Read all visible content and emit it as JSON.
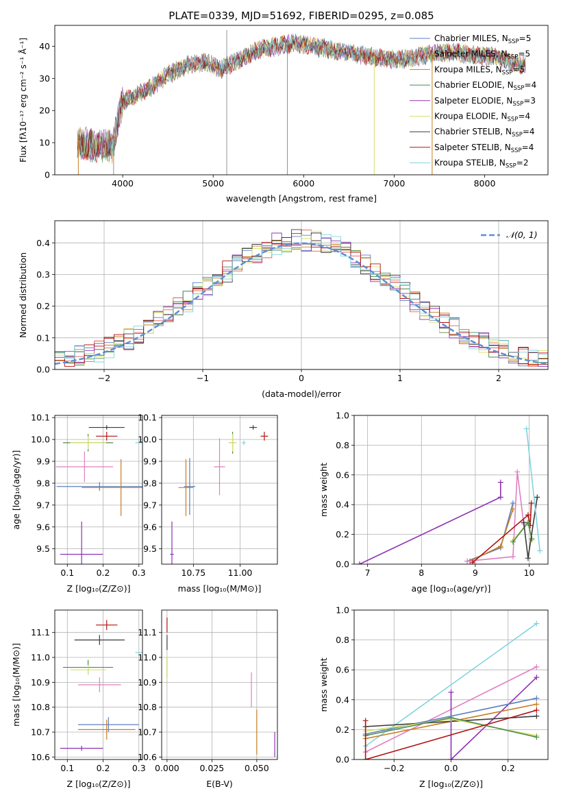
{
  "chart_data": [
    {
      "type": "line",
      "title": "PLATE=0339, MJD=51692, FIBERID=0295, z=0.085",
      "xlabel": "wavelength [Angstrom, rest frame]",
      "ylabel": "Flux [fλ10⁻¹⁷ erg cm⁻² s⁻¹ Å⁻¹]",
      "xlim": [
        3250,
        8700
      ],
      "ylim": [
        0,
        46.5
      ],
      "xticks": [
        4000,
        5000,
        6000,
        7000,
        8000
      ],
      "yticks": [
        0,
        10,
        20,
        30,
        40
      ],
      "legend_position": "top-right",
      "spectrum_anchor_points": {
        "x": [
          3500,
          3700,
          3900,
          3920,
          4000,
          4100,
          4300,
          4500,
          4700,
          4900,
          5100,
          5300,
          5500,
          5700,
          5900,
          6100,
          6300,
          6500,
          6700,
          6900,
          7100,
          7300,
          7500,
          7700,
          7900,
          8100,
          8300,
          8450
        ],
        "y": [
          10,
          9,
          9,
          14,
          23,
          24,
          27,
          31,
          34,
          35,
          33,
          36,
          39,
          40,
          41,
          40,
          39,
          38,
          37,
          36,
          36,
          37,
          38,
          38,
          37,
          37,
          35,
          34
        ]
      },
      "series": [
        {
          "name": "Chabrier MILES, N_SSP=5",
          "color": "#5b7fbf"
        },
        {
          "name": "Salpeter MILES, N_SSP=5",
          "color": "#e05c5c"
        },
        {
          "name": "Kroupa MILES, N_SSP=5",
          "color": "#c77d21"
        },
        {
          "name": "Chabrier ELODIE, N_SSP=4",
          "color": "#4c8a4c"
        },
        {
          "name": "Salpeter ELODIE, N_SSP=3",
          "color": "#8e30b3"
        },
        {
          "name": "Kroupa ELODIE, N_SSP=4",
          "color": "#d9e06a"
        },
        {
          "name": "Chabrier STELIB, N_SSP=4",
          "color": "#3a3a3a"
        },
        {
          "name": "Salpeter STELIB, N_SSP=4",
          "color": "#b01010"
        },
        {
          "name": "Kroupa STELIB, N_SSP=2",
          "color": "#7fd3e0"
        }
      ],
      "legend_labels": [
        {
          "pre": "Chabrier MILES, N",
          "sub": "SSP",
          "post": "=5"
        },
        {
          "pre": "Salpeter MILES, N",
          "sub": "SSP",
          "post": "=5"
        },
        {
          "pre": "Kroupa MILES, N",
          "sub": "SSP",
          "post": "=5"
        },
        {
          "pre": "Chabrier ELODIE, N",
          "sub": "SSP",
          "post": "=4"
        },
        {
          "pre": "Salpeter ELODIE, N",
          "sub": "SSP",
          "post": "=3"
        },
        {
          "pre": "Kroupa ELODIE, N",
          "sub": "SSP",
          "post": "=4"
        },
        {
          "pre": "Chabrier STELIB, N",
          "sub": "SSP",
          "post": "=4"
        },
        {
          "pre": "Salpeter STELIB, N",
          "sub": "SSP",
          "post": "=4"
        },
        {
          "pre": "Kroupa STELIB, N",
          "sub": "SSP",
          "post": "=2"
        }
      ]
    },
    {
      "type": "line",
      "xlabel": "(data-model)/error",
      "ylabel": "Normed distribution",
      "xlim": [
        -2.5,
        2.5
      ],
      "ylim": [
        0,
        0.47
      ],
      "xticks": [
        -2,
        -1,
        0,
        1,
        2
      ],
      "yticks": [
        0.0,
        0.1,
        0.2,
        0.3,
        0.4
      ],
      "grid": true,
      "legend_position": "top-right",
      "reference_curve": {
        "name": "𝒩(0, 1)",
        "mean": 0,
        "sigma": 1,
        "color": "#5b8fd6",
        "style": "dashed"
      }
    },
    {
      "type": "scatter",
      "xlabel": "Z [log₁₀(Z/Z⊙)]",
      "ylabel": "age  [log₁₀(age/yr)]",
      "xlim": [
        0.065,
        0.31
      ],
      "ylim": [
        9.43,
        10.11
      ],
      "xticks": [
        0.1,
        0.2,
        0.3
      ],
      "yticks": [
        9.5,
        9.6,
        9.7,
        9.8,
        9.9,
        10.0,
        10.1
      ],
      "grid": true,
      "points": [
        {
          "x": 0.21,
          "xerr": 0.05,
          "y": 10.055,
          "yerr": 0.01,
          "color": "#3a3a3a"
        },
        {
          "x": 0.21,
          "xerr": 0.03,
          "y": 10.015,
          "yerr": 0.02,
          "color": "#b01010"
        },
        {
          "x": 0.158,
          "xerr": 0.07,
          "y": 9.985,
          "yerr": 0.04,
          "color": "#4c8a4c"
        },
        {
          "x": 0.158,
          "xerr": 0.05,
          "y": 9.985,
          "yerr": 0.03,
          "color": "#d9e06a"
        },
        {
          "x": 0.33,
          "xerr": 0.04,
          "y": 9.985,
          "yerr": 0.01,
          "color": "#7fd3e0"
        },
        {
          "x": 0.148,
          "xerr": 0.08,
          "y": 9.875,
          "yerr": 0.07,
          "color": "#e07fc2"
        },
        {
          "x": 0.19,
          "xerr": 0.12,
          "y": 9.785,
          "yerr": 0.02,
          "color": "#5b7fbf"
        },
        {
          "x": 0.25,
          "xerr": 0.11,
          "y": 9.78,
          "yerr": 0.13,
          "color": "#c77d21"
        },
        {
          "x": 0.14,
          "xerr": 0.06,
          "y": 9.475,
          "yerr": 0.15,
          "color": "#8e30b3"
        }
      ]
    },
    {
      "type": "scatter",
      "xlabel": "mass [log₁₀(M/M⊙)]",
      "xlim": [
        10.58,
        11.2
      ],
      "ylim": [
        9.43,
        10.11
      ],
      "xticks": [
        10.75,
        11.0
      ],
      "yticks": [
        9.5,
        9.6,
        9.7,
        9.8,
        9.9,
        10.0,
        10.1
      ],
      "grid": true,
      "points": [
        {
          "x": 11.07,
          "xerr": 0.02,
          "y": 10.055,
          "yerr": 0.01,
          "color": "#3a3a3a"
        },
        {
          "x": 11.13,
          "xerr": 0.02,
          "y": 10.015,
          "yerr": 0.02,
          "color": "#b01010"
        },
        {
          "x": 10.96,
          "xerr": 0.02,
          "y": 9.985,
          "yerr": 0.05,
          "color": "#4c8a4c"
        },
        {
          "x": 10.96,
          "xerr": 0.02,
          "y": 9.985,
          "yerr": 0.04,
          "color": "#d9e06a"
        },
        {
          "x": 11.02,
          "xerr": 0.01,
          "y": 9.985,
          "yerr": 0.01,
          "color": "#7fd3e0"
        },
        {
          "x": 10.89,
          "xerr": 0.03,
          "y": 9.875,
          "yerr": 0.13,
          "color": "#e07fc2"
        },
        {
          "x": 10.73,
          "xerr": 0.03,
          "y": 9.785,
          "yerr": 0.13,
          "color": "#5b7fbf"
        },
        {
          "x": 10.71,
          "xerr": 0.04,
          "y": 9.78,
          "yerr": 0.13,
          "color": "#c77d21"
        },
        {
          "x": 10.635,
          "xerr": 0.01,
          "y": 9.475,
          "yerr": 0.15,
          "color": "#8e30b3"
        }
      ]
    },
    {
      "type": "line",
      "xlabel": "age  [log₁₀(age/yr)]",
      "ylabel": "mass weight",
      "xlim": [
        6.75,
        10.35
      ],
      "ylim": [
        0,
        1.0
      ],
      "xticks": [
        7,
        8,
        9,
        10
      ],
      "yticks": [
        0.0,
        0.2,
        0.4,
        0.6,
        0.8,
        1.0
      ],
      "grid": true,
      "series": [
        {
          "color": "#8e30b3",
          "x": [
            6.85,
            9.47,
            9.47
          ],
          "y": [
            0.0,
            0.45,
            0.55
          ]
        },
        {
          "color": "#5b7fbf",
          "x": [
            8.85,
            9.47,
            9.7
          ],
          "y": [
            0.02,
            0.11,
            0.41
          ]
        },
        {
          "color": "#c77d21",
          "x": [
            8.9,
            9.47,
            9.7
          ],
          "y": [
            0.02,
            0.12,
            0.37
          ]
        },
        {
          "color": "#e07fc2",
          "x": [
            8.85,
            9.7,
            9.78,
            9.9
          ],
          "y": [
            0.02,
            0.05,
            0.62,
            0.27
          ]
        },
        {
          "color": "#b01010",
          "x": [
            8.95,
            9.98,
            10.02,
            10.04
          ],
          "y": [
            0.01,
            0.33,
            0.26,
            0.41
          ]
        },
        {
          "color": "#d9e06a",
          "x": [
            9.7,
            9.98,
            10.05
          ],
          "y": [
            0.16,
            0.28,
            0.16
          ]
        },
        {
          "color": "#4c8a4c",
          "x": [
            9.7,
            9.98,
            10.05
          ],
          "y": [
            0.15,
            0.28,
            0.17
          ]
        },
        {
          "color": "#3a3a3a",
          "x": [
            9.9,
            9.98,
            10.15
          ],
          "y": [
            0.28,
            0.04,
            0.45
          ]
        },
        {
          "color": "#7fd3e0",
          "x": [
            9.95,
            10.2
          ],
          "y": [
            0.91,
            0.09
          ]
        }
      ]
    },
    {
      "type": "scatter",
      "xlabel": "Z [log₁₀(Z/Z⊙)]",
      "ylabel": "mass [log₁₀(M/M⊙)]",
      "xlim": [
        0.065,
        0.31
      ],
      "ylim": [
        10.59,
        11.19
      ],
      "xticks": [
        0.1,
        0.2,
        0.3
      ],
      "yticks": [
        10.6,
        10.7,
        10.8,
        10.9,
        11.0,
        11.1
      ],
      "grid": true,
      "points": [
        {
          "x": 0.21,
          "xerr": 0.03,
          "y": 11.13,
          "yerr": 0.02,
          "color": "#b01010"
        },
        {
          "x": 0.19,
          "xerr": 0.07,
          "y": 11.07,
          "yerr": 0.02,
          "color": "#3a3a3a"
        },
        {
          "x": 0.33,
          "xerr": 0.04,
          "y": 11.02,
          "yerr": 0.01,
          "color": "#7fd3e0"
        },
        {
          "x": 0.158,
          "xerr": 0.07,
          "y": 10.96,
          "yerr": 0.03,
          "color": "#4c8a4c"
        },
        {
          "x": 0.158,
          "xerr": 0.05,
          "y": 10.95,
          "yerr": 0.02,
          "color": "#d9e06a"
        },
        {
          "x": 0.19,
          "xerr": 0.06,
          "y": 10.89,
          "yerr": 0.03,
          "color": "#e07fc2"
        },
        {
          "x": 0.215,
          "xerr": 0.085,
          "y": 10.73,
          "yerr": 0.03,
          "color": "#5b7fbf"
        },
        {
          "x": 0.21,
          "xerr": 0.08,
          "y": 10.71,
          "yerr": 0.04,
          "color": "#c77d21"
        },
        {
          "x": 0.14,
          "xerr": 0.06,
          "y": 10.635,
          "yerr": 0.01,
          "color": "#8e30b3"
        }
      ]
    },
    {
      "type": "scatter",
      "xlabel": "E(B-V)",
      "xlim": [
        -0.003,
        0.0615
      ],
      "ylim": [
        10.59,
        11.19
      ],
      "xticks": [
        0.0,
        0.025,
        0.05
      ],
      "xtick_labels": [
        "0.000",
        "0.025",
        "0.050"
      ],
      "yticks": [
        10.6,
        10.7,
        10.8,
        10.9,
        11.0,
        11.1
      ],
      "grid": true,
      "points": [
        {
          "x": 0.0,
          "y": 11.13,
          "yerr": 0.03,
          "color": "#b01010"
        },
        {
          "x": 0.0,
          "y": 11.06,
          "yerr": 0.03,
          "color": "#3a3a3a"
        },
        {
          "x": 0.0,
          "y": 10.96,
          "yerr": 0.04,
          "color": "#4c8a4c"
        },
        {
          "x": 0.0,
          "y": 10.96,
          "yerr": 0.05,
          "color": "#d9e06a"
        },
        {
          "x": 0.047,
          "y": 10.87,
          "yerr": 0.07,
          "color": "#e07fc2"
        },
        {
          "x": 0.05,
          "y": 10.7,
          "yerr": 0.09,
          "color": "#c77d21"
        },
        {
          "x": 0.06,
          "y": 10.65,
          "yerr": 0.05,
          "color": "#8e30b3"
        }
      ]
    },
    {
      "type": "line",
      "xlabel": "Z [log₁₀(Z/Z⊙)]",
      "ylabel": "mass weight",
      "xlim": [
        -0.34,
        0.34
      ],
      "ylim": [
        0,
        1.0
      ],
      "xticks": [
        -0.2,
        0.0,
        0.2
      ],
      "yticks": [
        0.0,
        0.2,
        0.4,
        0.6,
        0.8,
        1.0
      ],
      "grid": true,
      "series": [
        {
          "color": "#7fd3e0",
          "x": [
            -0.3,
            0.3
          ],
          "y": [
            0.09,
            0.91
          ]
        },
        {
          "color": "#e07fc2",
          "x": [
            -0.3,
            0.3
          ],
          "y": [
            0.05,
            0.62
          ]
        },
        {
          "color": "#8e30b3",
          "x": [
            0.0,
            0.0,
            0.3
          ],
          "y": [
            0.45,
            0.0,
            0.55
          ]
        },
        {
          "color": "#5b7fbf",
          "x": [
            -0.3,
            0.3
          ],
          "y": [
            0.17,
            0.41
          ]
        },
        {
          "color": "#c77d21",
          "x": [
            -0.3,
            0.3
          ],
          "y": [
            0.14,
            0.37
          ]
        },
        {
          "color": "#3a3a3a",
          "x": [
            -0.3,
            0.3
          ],
          "y": [
            0.22,
            0.29
          ]
        },
        {
          "color": "#d9e06a",
          "x": [
            -0.3,
            0.0,
            0.3
          ],
          "y": [
            0.19,
            0.27,
            0.16
          ]
        },
        {
          "color": "#4c8a4c",
          "x": [
            -0.3,
            0.0,
            0.3
          ],
          "y": [
            0.16,
            0.28,
            0.15
          ]
        },
        {
          "color": "#b01010",
          "x": [
            -0.3,
            -0.3,
            0.3
          ],
          "y": [
            0.26,
            0.0,
            0.33
          ]
        }
      ]
    }
  ]
}
